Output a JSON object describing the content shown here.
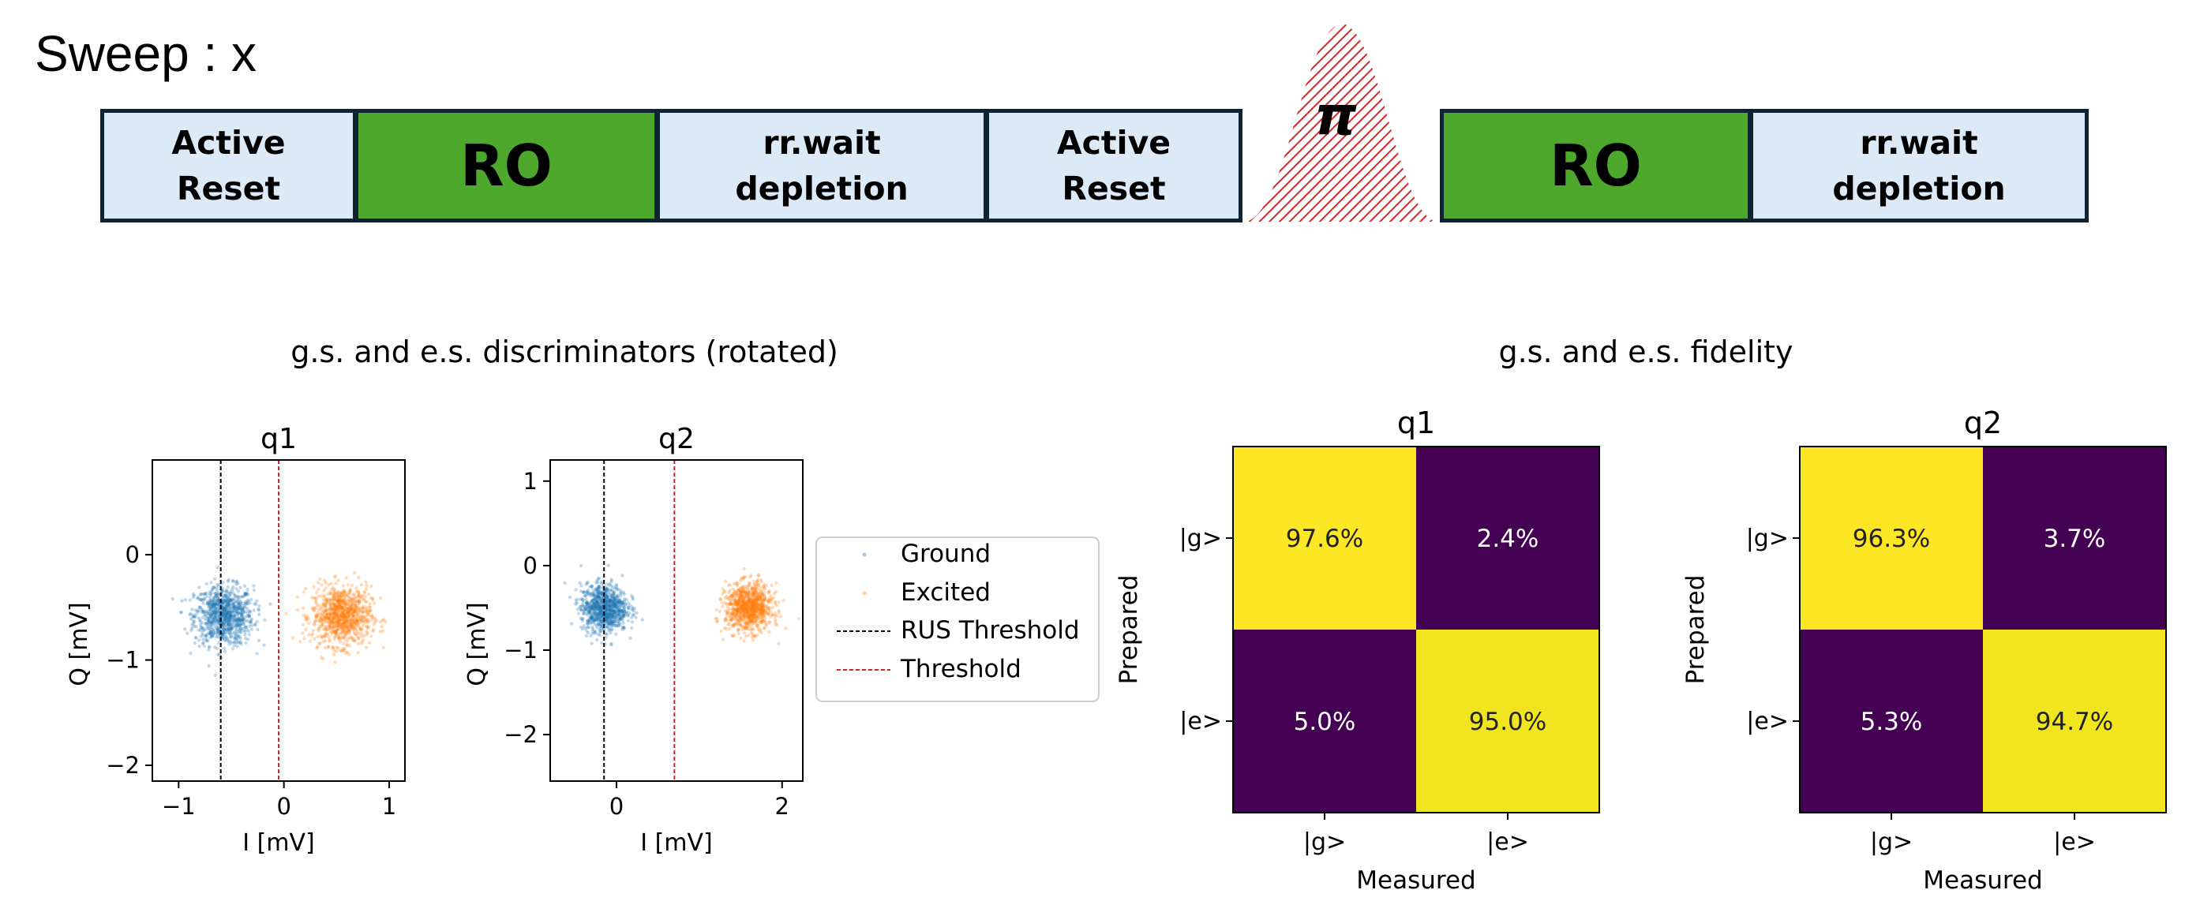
{
  "sweep_label": "Sweep : x",
  "sequence": [
    {
      "label": "Active\nReset",
      "kind": "light"
    },
    {
      "label": "RO",
      "kind": "green"
    },
    {
      "label": "rr.wait\ndepletion",
      "kind": "light"
    },
    {
      "label": "Active\nReset",
      "kind": "light"
    },
    {
      "label": "π",
      "kind": "pulse"
    },
    {
      "label": "RO",
      "kind": "green"
    },
    {
      "label": "rr.wait\ndepletion",
      "kind": "light"
    }
  ],
  "discriminators": {
    "title": "g.s. and e.s. discriminators (rotated)",
    "xlabel": "I [mV]",
    "ylabel": "Q [mV]",
    "legend": [
      "Ground",
      "Excited",
      "RUS Threshold",
      "Threshold"
    ],
    "colors": {
      "ground": "#1f77b4",
      "excited": "#ff7f0e",
      "rus": "#000000",
      "threshold": "#d62728"
    },
    "plots": [
      {
        "title": "q1",
        "xticks": [
          "−1",
          "0",
          "1"
        ],
        "yticks": [
          "0",
          "−1",
          "−2"
        ],
        "xlim": [
          -1.25,
          1.15
        ],
        "ylim": [
          -2.15,
          0.9
        ],
        "ground_center": [
          -0.57,
          -0.58
        ],
        "excited_center": [
          0.55,
          -0.58
        ],
        "rus_threshold": -0.6,
        "threshold": -0.05
      },
      {
        "title": "q2",
        "xticks": [
          "0",
          "2"
        ],
        "yticks": [
          "1",
          "0",
          "−1",
          "−2"
        ],
        "xlim": [
          -0.8,
          2.25
        ],
        "ylim": [
          -2.55,
          1.25
        ],
        "ground_center": [
          -0.15,
          -0.5
        ],
        "excited_center": [
          1.6,
          -0.5
        ],
        "rus_threshold": -0.15,
        "threshold": 0.7
      }
    ]
  },
  "fidelity": {
    "title": "g.s. and e.s. fidelity",
    "xlabel": "Measured",
    "ylabel": "Prepared",
    "ticks": [
      "|g>",
      "|e>"
    ],
    "colors": {
      "high": "#fde725",
      "high2": "#f0e51e",
      "low": "#440154"
    },
    "plots": [
      {
        "title": "q1",
        "cells": [
          [
            "97.6%",
            "2.4%"
          ],
          [
            "5.0%",
            "95.0%"
          ]
        ]
      },
      {
        "title": "q2",
        "cells": [
          [
            "96.3%",
            "3.7%"
          ],
          [
            "5.3%",
            "94.7%"
          ]
        ]
      }
    ]
  }
}
